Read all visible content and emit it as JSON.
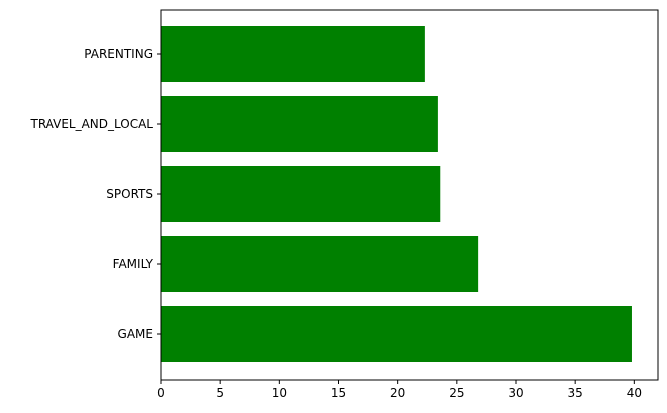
{
  "chart_data": {
    "type": "bar",
    "orientation": "horizontal",
    "categories": [
      "GAME",
      "FAMILY",
      "SPORTS",
      "TRAVEL_AND_LOCAL",
      "PARENTING"
    ],
    "values": [
      39.8,
      26.8,
      23.6,
      23.4,
      22.3
    ],
    "bar_color": "#008000",
    "title": "",
    "xlabel": "",
    "ylabel": "",
    "xlim": [
      0,
      42
    ],
    "xticks": [
      0,
      5,
      10,
      15,
      20,
      25,
      30,
      35,
      40
    ],
    "grid": false,
    "legend": "none"
  }
}
